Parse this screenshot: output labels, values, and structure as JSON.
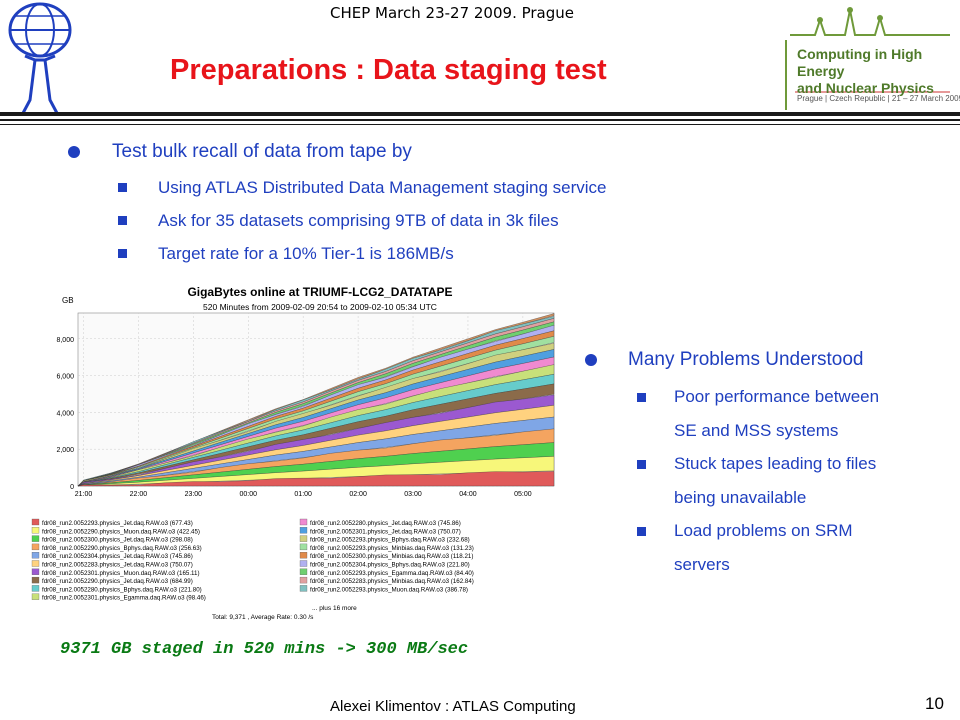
{
  "header": {
    "event": "CHEP  March 23-27 2009. Prague"
  },
  "title": "Preparations :  Data staging test",
  "left": {
    "bullet": "Test bulk recall of data from tape by",
    "items": [
      "Using ATLAS Distributed Data Management staging service",
      "Ask for 35 datasets comprising 9TB of data in 3k files",
      "Target rate for a 10% Tier-1 is 186MB/s"
    ]
  },
  "right": {
    "bullet": "Many Problems Understood",
    "lines": [
      "Poor performance between",
      "SE and MSS systems",
      "Stuck tapes leading to files",
      "being unavailable",
      "Load problems on SRM",
      "servers"
    ]
  },
  "chart_data": {
    "type": "area",
    "title": "GigaBytes online at TRIUMF-LCG2_DATATAPE",
    "subtitle": "520 Minutes from 2009-02-09 20:54 to 2009-02-10 05:34 UTC",
    "ylabel": "GB",
    "ylim": [
      0,
      9400
    ],
    "yticks": [
      "0",
      "2,000",
      "4,000",
      "6,000",
      "8,000"
    ],
    "xticks": [
      "21:00",
      "22:00",
      "23:00",
      "00:00",
      "01:00",
      "02:00",
      "03:00",
      "04:00",
      "05:00"
    ],
    "total_x": [
      "20:54",
      "21:00",
      "21:30",
      "22:00",
      "22:30",
      "23:00",
      "23:30",
      "00:00",
      "00:30",
      "01:00",
      "01:30",
      "02:00",
      "02:30",
      "03:00",
      "03:30",
      "04:00",
      "04:30",
      "05:00",
      "05:34"
    ],
    "total_values": [
      0,
      300,
      700,
      1200,
      1800,
      2400,
      3000,
      3600,
      4200,
      4700,
      5300,
      5900,
      6400,
      7000,
      7500,
      8000,
      8500,
      8900,
      9371
    ],
    "colors": [
      "#e05a5a",
      "#f7f77a",
      "#4fd04f",
      "#f4a460",
      "#7fa6e6",
      "#ffd27f",
      "#9b59d0",
      "#8b6b4a",
      "#66cccc",
      "#c8e07a",
      "#f08ad0",
      "#4f9fe0",
      "#d0d07f",
      "#a0e0a0",
      "#e08a4a",
      "#b0b0f0",
      "#6fcf6f",
      "#e0a0a0",
      "#80c0c0",
      "#d09060"
    ],
    "legend": [
      "fdr08_run2.0052293.physics_Jet.daq.RAW.o3 (677.43)",
      "fdr08_run2.0052290.physics_Muon.daq.RAW.o3 (422.45)",
      "fdr08_run2.0052300.physics_Jet.daq.RAW.o3 (298.08)",
      "fdr08_run2.0052290.physics_Bphys.daq.RAW.o3 (256.63)",
      "fdr08_run2.0052304.physics_Jet.daq.RAW.o3 (745.86)",
      "fdr08_run2.0052283.physics_Jet.daq.RAW.o3 (750.07)",
      "fdr08_run2.0052301.physics_Muon.daq.RAW.o3 (165.11)",
      "fdr08_run2.0052290.physics_Jet.daq.RAW.o3 (684.99)",
      "fdr08_run2.0052280.physics_Bphys.daq.RAW.o3 (221.80)",
      "fdr08_run2.0052301.physics_Egamma.daq.RAW.o3 (98.46)",
      "fdr08_run2.0052280.physics_Jet.daq.RAW.o3 (745.86)",
      "fdr08_run2.0052301.physics_Jet.daq.RAW.o3 (750.07)",
      "fdr08_run2.0052293.physics_Bphys.daq.RAW.o3 (232.68)",
      "fdr08_run2.0052293.physics_Minbias.daq.RAW.o3 (131.23)",
      "fdr08_run2.0052300.physics_Minbias.daq.RAW.o3 (118.21)",
      "fdr08_run2.0052304.physics_Bphys.daq.RAW.o3 (221.80)",
      "fdr08_run2.0052293.physics_Egamma.daq.RAW.o3 (84.40)",
      "fdr08_run2.0052283.physics_Minbias.daq.RAW.o3 (162.84)",
      "fdr08_run2.0052293.physics_Muon.daq.RAW.o3 (386.78)"
    ],
    "legend_more": "... plus 16 more",
    "total_note": "Total: 9,371 , Average Rate: 0.30 /s"
  },
  "result": "9371 GB staged in 520 mins -> 300 MB/sec",
  "footer": "Alexei Klimentov :  ATLAS Computing",
  "page_number": "10",
  "logo": {
    "chep_text": [
      "Computing in High Energy",
      "and Nuclear Physics"
    ],
    "chep_sub": "Prague | Czech Republic | 21 – 27 March 2009"
  }
}
